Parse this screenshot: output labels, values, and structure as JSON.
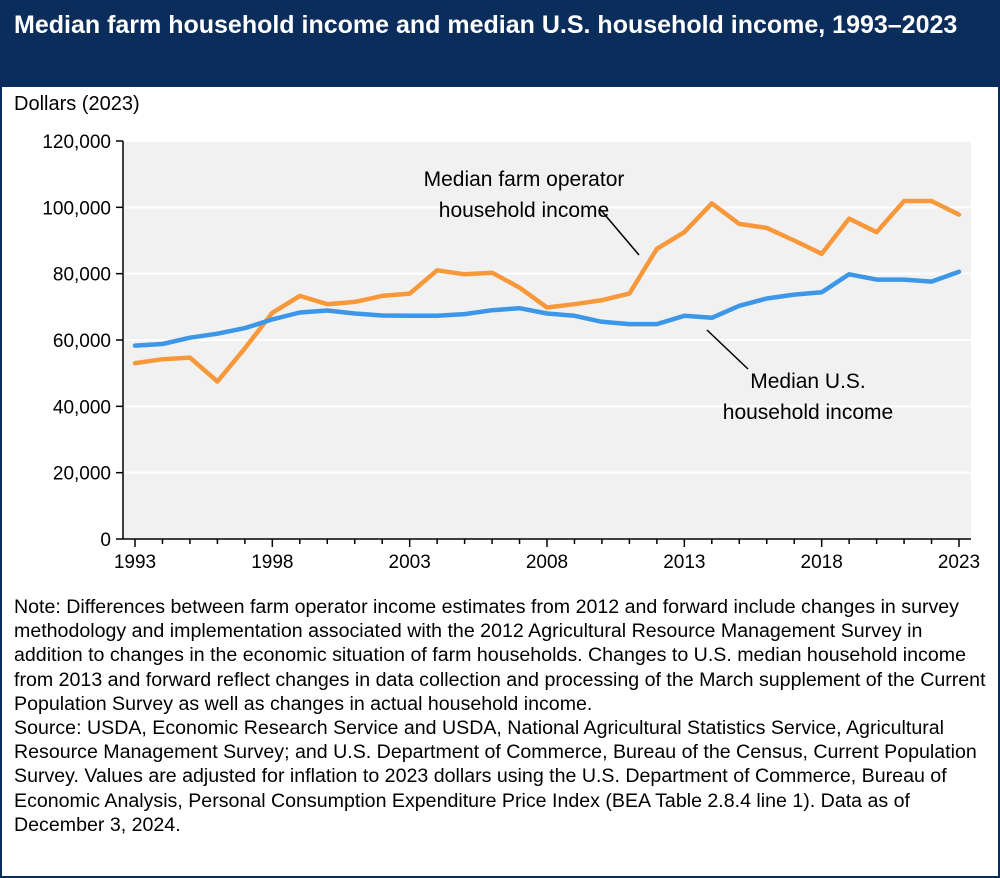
{
  "title": "Median farm household income and median U.S. household income, 1993–2023",
  "y_unit": "Dollars (2023)",
  "chart_data": {
    "type": "line",
    "xlim": [
      1993,
      2023
    ],
    "ylim": [
      0,
      120000
    ],
    "grid": true,
    "legend": "annotations",
    "x_ticks": [
      "1993",
      "1998",
      "2003",
      "2008",
      "2013",
      "2018",
      "2023"
    ],
    "y_ticks": [
      "0",
      "20,000",
      "40,000",
      "60,000",
      "80,000",
      "100,000",
      "120,000"
    ],
    "x": [
      1993,
      1994,
      1995,
      1996,
      1997,
      1998,
      1999,
      2000,
      2001,
      2002,
      2003,
      2004,
      2005,
      2006,
      2007,
      2008,
      2009,
      2010,
      2011,
      2012,
      2013,
      2014,
      2015,
      2016,
      2017,
      2018,
      2019,
      2020,
      2021,
      2022,
      2023
    ],
    "series": [
      {
        "name": "Median farm operator household income",
        "color": "#f7993b",
        "values": [
          53000,
          54200,
          54700,
          47500,
          57500,
          68200,
          73300,
          70800,
          71500,
          73300,
          74000,
          81000,
          79800,
          80300,
          75800,
          69800,
          70800,
          72000,
          74000,
          87500,
          92500,
          101200,
          95000,
          93800,
          90000,
          86000,
          96600,
          92500,
          101900,
          101900,
          97800
        ]
      },
      {
        "name": "Median U.S. household income",
        "color": "#3d97e8",
        "values": [
          58300,
          58800,
          60700,
          61900,
          63600,
          66200,
          68300,
          68900,
          68000,
          67400,
          67300,
          67300,
          67800,
          69000,
          69600,
          68000,
          67300,
          65500,
          64800,
          64800,
          67300,
          66700,
          70300,
          72500,
          73700,
          74400,
          79800,
          78200,
          78200,
          77600,
          80600
        ]
      }
    ],
    "annotations": [
      {
        "lines": [
          "Median farm operator",
          "household income"
        ],
        "series": 0
      },
      {
        "lines": [
          "Median U.S.",
          "household income"
        ],
        "series": 1
      }
    ]
  },
  "note": "Note: Differences between farm operator income estimates from 2012 and forward include changes in survey methodology and implementation associated with the 2012 Agricultural Resource Management Survey in addition to changes in the economic situation of farm households. Changes to U.S. median household income from 2013 and forward reflect changes in data collection and processing of the March supplement of the Current Population Survey as well as changes in actual household income.",
  "source": "Source: USDA, Economic Research Service and USDA, National Agricultural Statistics Service, Agricultural Resource Management Survey; and U.S. Department of Commerce, Bureau of the Census, Current Population Survey. Values are adjusted for inflation to 2023 dollars using the U.S. Department of Commerce, Bureau of Economic Analysis, Personal Consumption Expenditure Price Index (BEA Table 2.8.4 line 1). Data as of December 3, 2024."
}
